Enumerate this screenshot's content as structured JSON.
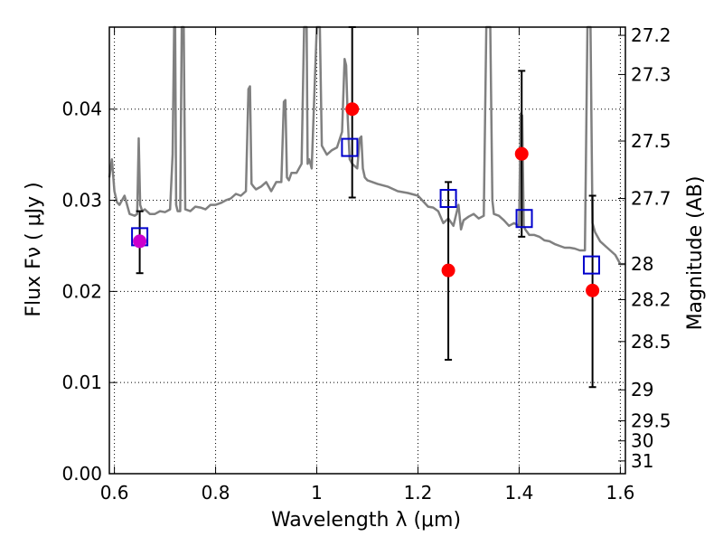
{
  "chart_data": {
    "type": "scatter",
    "title": "",
    "xlabel": "Wavelength  λ (μm)",
    "ylabel": "Flux  Fν  ( μJy )",
    "ylabel_right": "Magnitude (AB)",
    "xlim": [
      0.59,
      1.61
    ],
    "ylim": [
      0.0,
      0.049
    ],
    "grid": true,
    "grid_style": "dotted",
    "x_ticks": [
      0.6,
      0.8,
      1.0,
      1.2,
      1.4,
      1.6
    ],
    "x_tick_labels": [
      "0.6",
      "0.8",
      "1",
      "1.2",
      "1.4",
      "1.6"
    ],
    "y_ticks": [
      0.0,
      0.01,
      0.02,
      0.03,
      0.04
    ],
    "y_tick_labels": [
      "0.00",
      "0.01",
      "0.02",
      "0.03",
      "0.04"
    ],
    "right_ticks": [
      {
        "label": "27.2",
        "flux": 0.0481
      },
      {
        "label": "27.3",
        "flux": 0.0438
      },
      {
        "label": "27.5",
        "flux": 0.0365
      },
      {
        "label": "27.7",
        "flux": 0.0302
      },
      {
        "label": "28",
        "flux": 0.023
      },
      {
        "label": "28.2",
        "flux": 0.0191
      },
      {
        "label": "28.5",
        "flux": 0.0145
      },
      {
        "label": "29",
        "flux": 0.0092
      },
      {
        "label": "29.5",
        "flux": 0.0058
      },
      {
        "label": "30",
        "flux": 0.0036
      },
      {
        "label": "31",
        "flux": 0.0014
      }
    ],
    "series": [
      {
        "kind": "spectrum",
        "color": "#808080",
        "x": [
          0.59,
          0.595,
          0.6,
          0.605,
          0.61,
          0.62,
          0.63,
          0.64,
          0.645,
          0.648,
          0.651,
          0.655,
          0.66,
          0.67,
          0.68,
          0.69,
          0.7,
          0.71,
          0.715,
          0.718,
          0.72,
          0.722,
          0.725,
          0.73,
          0.733,
          0.735,
          0.737,
          0.74,
          0.75,
          0.76,
          0.77,
          0.78,
          0.79,
          0.8,
          0.81,
          0.82,
          0.83,
          0.84,
          0.85,
          0.86,
          0.865,
          0.868,
          0.871,
          0.875,
          0.88,
          0.89,
          0.9,
          0.91,
          0.92,
          0.93,
          0.935,
          0.938,
          0.941,
          0.945,
          0.95,
          0.96,
          0.97,
          0.975,
          0.978,
          0.98,
          0.982,
          0.985,
          0.99,
          1.0,
          1.003,
          1.006,
          1.01,
          1.02,
          1.03,
          1.04,
          1.05,
          1.055,
          1.058,
          1.061,
          1.065,
          1.07,
          1.08,
          1.085,
          1.088,
          1.091,
          1.095,
          1.1,
          1.12,
          1.14,
          1.16,
          1.18,
          1.2,
          1.22,
          1.23,
          1.24,
          1.25,
          1.26,
          1.27,
          1.28,
          1.285,
          1.29,
          1.3,
          1.31,
          1.32,
          1.33,
          1.335,
          1.34,
          1.343,
          1.347,
          1.35,
          1.36,
          1.37,
          1.38,
          1.39,
          1.4,
          1.403,
          1.406,
          1.409,
          1.412,
          1.42,
          1.43,
          1.44,
          1.45,
          1.46,
          1.47,
          1.48,
          1.49,
          1.5,
          1.51,
          1.52,
          1.53,
          1.535,
          1.538,
          1.541,
          1.545,
          1.55,
          1.56,
          1.57,
          1.58,
          1.59,
          1.6,
          1.61
        ],
        "y": [
          0.0325,
          0.0345,
          0.031,
          0.0298,
          0.0295,
          0.0305,
          0.0285,
          0.0283,
          0.0285,
          0.0368,
          0.0295,
          0.0288,
          0.029,
          0.0285,
          0.0285,
          0.0288,
          0.0287,
          0.029,
          0.035,
          0.049,
          0.049,
          0.0295,
          0.0288,
          0.0288,
          0.049,
          0.049,
          0.049,
          0.029,
          0.0288,
          0.0293,
          0.0292,
          0.029,
          0.0295,
          0.0295,
          0.0297,
          0.03,
          0.0302,
          0.0307,
          0.0305,
          0.031,
          0.0422,
          0.0425,
          0.0318,
          0.0315,
          0.0312,
          0.0315,
          0.032,
          0.031,
          0.032,
          0.032,
          0.0408,
          0.041,
          0.0325,
          0.0322,
          0.033,
          0.033,
          0.034,
          0.049,
          0.049,
          0.049,
          0.034,
          0.0345,
          0.0335,
          0.049,
          0.049,
          0.049,
          0.036,
          0.035,
          0.0355,
          0.0358,
          0.0375,
          0.0455,
          0.0448,
          0.0392,
          0.0345,
          0.034,
          0.0335,
          0.0368,
          0.037,
          0.0335,
          0.0325,
          0.0322,
          0.0318,
          0.0315,
          0.031,
          0.0308,
          0.0305,
          0.0293,
          0.0292,
          0.0288,
          0.0275,
          0.028,
          0.0272,
          0.0295,
          0.0268,
          0.0278,
          0.0282,
          0.0285,
          0.028,
          0.0283,
          0.049,
          0.049,
          0.049,
          0.03,
          0.0285,
          0.0283,
          0.0278,
          0.0272,
          0.0275,
          0.0272,
          0.0395,
          0.0393,
          0.0272,
          0.0268,
          0.0262,
          0.0262,
          0.026,
          0.0256,
          0.0255,
          0.0252,
          0.025,
          0.0248,
          0.0248,
          0.0247,
          0.0245,
          0.0245,
          0.049,
          0.049,
          0.049,
          0.0275,
          0.0265,
          0.0255,
          0.025,
          0.0245,
          0.024,
          0.023,
          0.023
        ]
      },
      {
        "kind": "model_photometry",
        "marker": "open-square",
        "color": "#0000cc",
        "x": [
          0.65,
          1.065,
          1.26,
          1.41,
          1.543
        ],
        "y": [
          0.026,
          0.0358,
          0.0302,
          0.028,
          0.0229
        ]
      },
      {
        "kind": "observed_photometry",
        "marker": "filled-circle",
        "color": "#ff0000",
        "x": [
          0.65,
          1.07,
          1.26,
          1.405,
          1.545
        ],
        "y": [
          0.0255,
          0.04,
          0.0223,
          0.0351,
          0.0201
        ],
        "yerr_low": [
          0.022,
          0.0303,
          0.0125,
          0.026,
          0.0095
        ],
        "yerr_high": [
          0.0288,
          0.049,
          0.032,
          0.0442,
          0.0305
        ]
      }
    ],
    "colors": {
      "first_circle": "#cc00cc",
      "errorbar": "#000000",
      "frame": "#000000"
    }
  }
}
